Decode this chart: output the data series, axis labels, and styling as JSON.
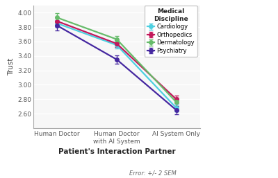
{
  "x_labels": [
    "Human Doctor",
    "Human Doctor\nwith AI System",
    "AI System Only"
  ],
  "x_positions": [
    0,
    1,
    2
  ],
  "series": [
    {
      "name": "Cardiology",
      "color": "#4dd0e1",
      "values": [
        3.85,
        3.55,
        2.68
      ],
      "errors": [
        0.05,
        0.05,
        0.05
      ]
    },
    {
      "name": "Orthopedics",
      "color": "#c2185b",
      "values": [
        3.88,
        3.57,
        2.8
      ],
      "errors": [
        0.05,
        0.05,
        0.05
      ]
    },
    {
      "name": "Dermatology",
      "color": "#66bb6a",
      "values": [
        3.93,
        3.63,
        2.76
      ],
      "errors": [
        0.06,
        0.05,
        0.06
      ]
    },
    {
      "name": "Psychiatry",
      "color": "#4527a0",
      "values": [
        3.82,
        3.35,
        2.65
      ],
      "errors": [
        0.07,
        0.06,
        0.06
      ]
    }
  ],
  "ylabel": "Trust",
  "xlabel": "Patient's Interaction Partner",
  "legend_title": "Medical\nDiscipline",
  "ylim": [
    2.4,
    4.1
  ],
  "yticks": [
    2.6,
    2.8,
    3.0,
    3.2,
    3.4,
    3.6,
    3.8,
    4.0
  ],
  "error_note": "Error: +/- 2 SEM",
  "background_color": "#ffffff",
  "plot_bg_color": "#f7f7f7",
  "linewidth": 1.6,
  "markersize": 4
}
